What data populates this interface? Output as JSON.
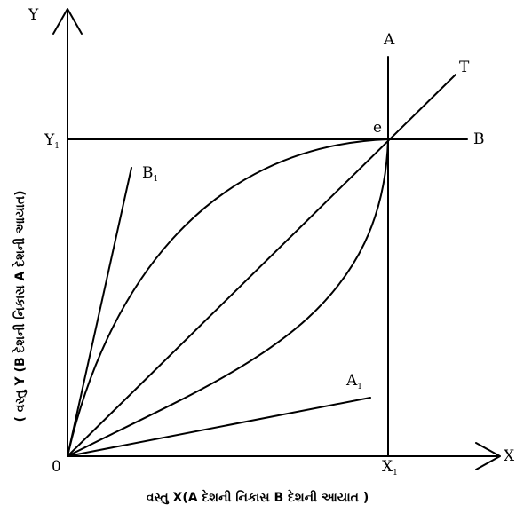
{
  "axes": {
    "y_label": "Y",
    "x_label": "X",
    "origin_label": "0",
    "x_caption": "વસ્તુ X(A દેશની નિકાસ B દેશની આયાત )",
    "y_caption": "( વસ્તુ Y (B દેશની નિકાસ A દેશની આયાત)"
  },
  "points": {
    "y1": {
      "main": "Y",
      "sub": "1"
    },
    "x1": {
      "main": "X",
      "sub": "1"
    },
    "e": "e"
  },
  "lines": {
    "a": "A",
    "b": "B",
    "t": "T",
    "b1": {
      "main": "B",
      "sub": "1"
    },
    "a1": {
      "main": "A",
      "sub": "1"
    }
  }
}
